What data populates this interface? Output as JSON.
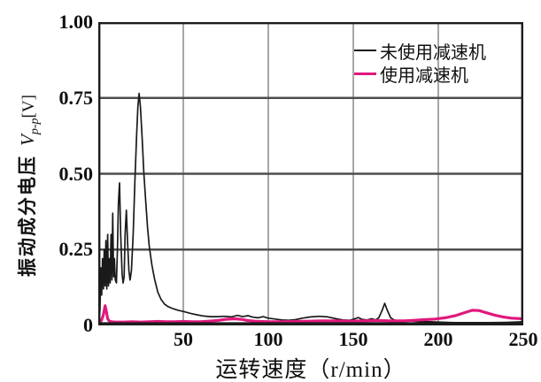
{
  "figure": {
    "background": "#ffffff"
  },
  "chart_data": {
    "type": "line",
    "title": "",
    "xlabel": "运转速度（r/min）",
    "ylabel_cn": "振动成分电压",
    "ylabel_symbol": {
      "main": "V",
      "sub": "p-p",
      "unit": "[V]"
    },
    "xlim": [
      0,
      250
    ],
    "ylim": [
      0,
      1.0
    ],
    "xticks": [
      {
        "v": 50,
        "label": "50"
      },
      {
        "v": 100,
        "label": "100"
      },
      {
        "v": 150,
        "label": "150"
      },
      {
        "v": 200,
        "label": "200"
      },
      {
        "v": 250,
        "label": "250"
      }
    ],
    "yticks": [
      {
        "v": 0,
        "label": "0"
      },
      {
        "v": 0.25,
        "label": "0.25"
      },
      {
        "v": 0.5,
        "label": "0.50"
      },
      {
        "v": 0.75,
        "label": "0.75"
      },
      {
        "v": 1.0,
        "label": "1.00"
      }
    ],
    "grid": {
      "x_values": [
        50,
        100,
        150,
        200
      ],
      "y_values": [
        0.25,
        0.5,
        0.75
      ],
      "x_color": "#8a8a8a",
      "y_color": "#4d4d4d",
      "x_width": 1.5,
      "y_width": 2.4
    },
    "border_color": "#1c1c1c",
    "legend": {
      "position": "top-right"
    },
    "series": [
      {
        "name": "未使用减速机",
        "color": "#1a1a1a",
        "width": 1.7,
        "points": [
          [
            0.5,
            0.02
          ],
          [
            1,
            0.05
          ],
          [
            1.5,
            0.19
          ],
          [
            2,
            0.1
          ],
          [
            2.5,
            0.22
          ],
          [
            3,
            0.12
          ],
          [
            3.5,
            0.25
          ],
          [
            4,
            0.13
          ],
          [
            4.5,
            0.28
          ],
          [
            5,
            0.12
          ],
          [
            5.5,
            0.3
          ],
          [
            6,
            0.13
          ],
          [
            6.5,
            0.22
          ],
          [
            7,
            0.14
          ],
          [
            7.5,
            0.3
          ],
          [
            8,
            0.15
          ],
          [
            8.5,
            0.37
          ],
          [
            9,
            0.16
          ],
          [
            9.5,
            0.22
          ],
          [
            10,
            0.15
          ],
          [
            10.7,
            0.14
          ],
          [
            11.3,
            0.26
          ],
          [
            11.8,
            0.4
          ],
          [
            12.5,
            0.47
          ],
          [
            13.2,
            0.3
          ],
          [
            14,
            0.17
          ],
          [
            14.6,
            0.14
          ],
          [
            15.2,
            0.16
          ],
          [
            15.8,
            0.3
          ],
          [
            16.5,
            0.38
          ],
          [
            17.2,
            0.28
          ],
          [
            18,
            0.18
          ],
          [
            18.7,
            0.15
          ],
          [
            19.5,
            0.18
          ],
          [
            20.5,
            0.3
          ],
          [
            21.5,
            0.47
          ],
          [
            22.5,
            0.62
          ],
          [
            23.3,
            0.72
          ],
          [
            24,
            0.765
          ],
          [
            24.8,
            0.72
          ],
          [
            25.8,
            0.62
          ],
          [
            26.8,
            0.5
          ],
          [
            28,
            0.4
          ],
          [
            29,
            0.32
          ],
          [
            30,
            0.26
          ],
          [
            31.5,
            0.2
          ],
          [
            33,
            0.155
          ],
          [
            35,
            0.11
          ],
          [
            37,
            0.085
          ],
          [
            39,
            0.07
          ],
          [
            41,
            0.062
          ],
          [
            44,
            0.055
          ],
          [
            47,
            0.05
          ],
          [
            50,
            0.046
          ],
          [
            54,
            0.04
          ],
          [
            58,
            0.035
          ],
          [
            62,
            0.031
          ],
          [
            66,
            0.029
          ],
          [
            70,
            0.029
          ],
          [
            74,
            0.03
          ],
          [
            78,
            0.028
          ],
          [
            82,
            0.033
          ],
          [
            85,
            0.029
          ],
          [
            88,
            0.032
          ],
          [
            91,
            0.027
          ],
          [
            94,
            0.025
          ],
          [
            97,
            0.029
          ],
          [
            100,
            0.024
          ],
          [
            104,
            0.021
          ],
          [
            108,
            0.018
          ],
          [
            112,
            0.017
          ],
          [
            116,
            0.019
          ],
          [
            120,
            0.024
          ],
          [
            125,
            0.028
          ],
          [
            130,
            0.03
          ],
          [
            135,
            0.028
          ],
          [
            140,
            0.022
          ],
          [
            144,
            0.018
          ],
          [
            148,
            0.017
          ],
          [
            151,
            0.022
          ],
          [
            153,
            0.026
          ],
          [
            155,
            0.02
          ],
          [
            158,
            0.018
          ],
          [
            161,
            0.022
          ],
          [
            163,
            0.018
          ],
          [
            165,
            0.025
          ],
          [
            167,
            0.05
          ],
          [
            168.5,
            0.073
          ],
          [
            170,
            0.05
          ],
          [
            172,
            0.025
          ],
          [
            174,
            0.018
          ],
          [
            177,
            0.015
          ],
          [
            180,
            0.014
          ],
          [
            185,
            0.014
          ],
          [
            190,
            0.012
          ],
          [
            195,
            0.012
          ],
          [
            200,
            0.011
          ],
          [
            210,
            0.009
          ],
          [
            220,
            0.009
          ],
          [
            230,
            0.009
          ],
          [
            240,
            0.01
          ],
          [
            250,
            0.012
          ]
        ]
      },
      {
        "name": "使用减速机",
        "color": "#e1187d",
        "width": 3.2,
        "points": [
          [
            0,
            0.006
          ],
          [
            1,
            0.01
          ],
          [
            2,
            0.018
          ],
          [
            3,
            0.035
          ],
          [
            4,
            0.065
          ],
          [
            4.8,
            0.045
          ],
          [
            5.5,
            0.022
          ],
          [
            6.5,
            0.014
          ],
          [
            8,
            0.012
          ],
          [
            10,
            0.011
          ],
          [
            15,
            0.011
          ],
          [
            20,
            0.012
          ],
          [
            25,
            0.011
          ],
          [
            30,
            0.012
          ],
          [
            35,
            0.013
          ],
          [
            40,
            0.012
          ],
          [
            45,
            0.012
          ],
          [
            50,
            0.013
          ],
          [
            55,
            0.012
          ],
          [
            60,
            0.012
          ],
          [
            65,
            0.014
          ],
          [
            70,
            0.016
          ],
          [
            75,
            0.02
          ],
          [
            80,
            0.022
          ],
          [
            84,
            0.02
          ],
          [
            88,
            0.016
          ],
          [
            92,
            0.014
          ],
          [
            100,
            0.012
          ],
          [
            108,
            0.012
          ],
          [
            116,
            0.013
          ],
          [
            124,
            0.014
          ],
          [
            132,
            0.015
          ],
          [
            140,
            0.015
          ],
          [
            148,
            0.014
          ],
          [
            156,
            0.015
          ],
          [
            164,
            0.016
          ],
          [
            172,
            0.015
          ],
          [
            180,
            0.015
          ],
          [
            186,
            0.017
          ],
          [
            192,
            0.019
          ],
          [
            198,
            0.021
          ],
          [
            204,
            0.025
          ],
          [
            210,
            0.032
          ],
          [
            215,
            0.041
          ],
          [
            220,
            0.05
          ],
          [
            224,
            0.049
          ],
          [
            228,
            0.042
          ],
          [
            233,
            0.034
          ],
          [
            238,
            0.028
          ],
          [
            243,
            0.024
          ],
          [
            250,
            0.022
          ]
        ]
      }
    ]
  }
}
